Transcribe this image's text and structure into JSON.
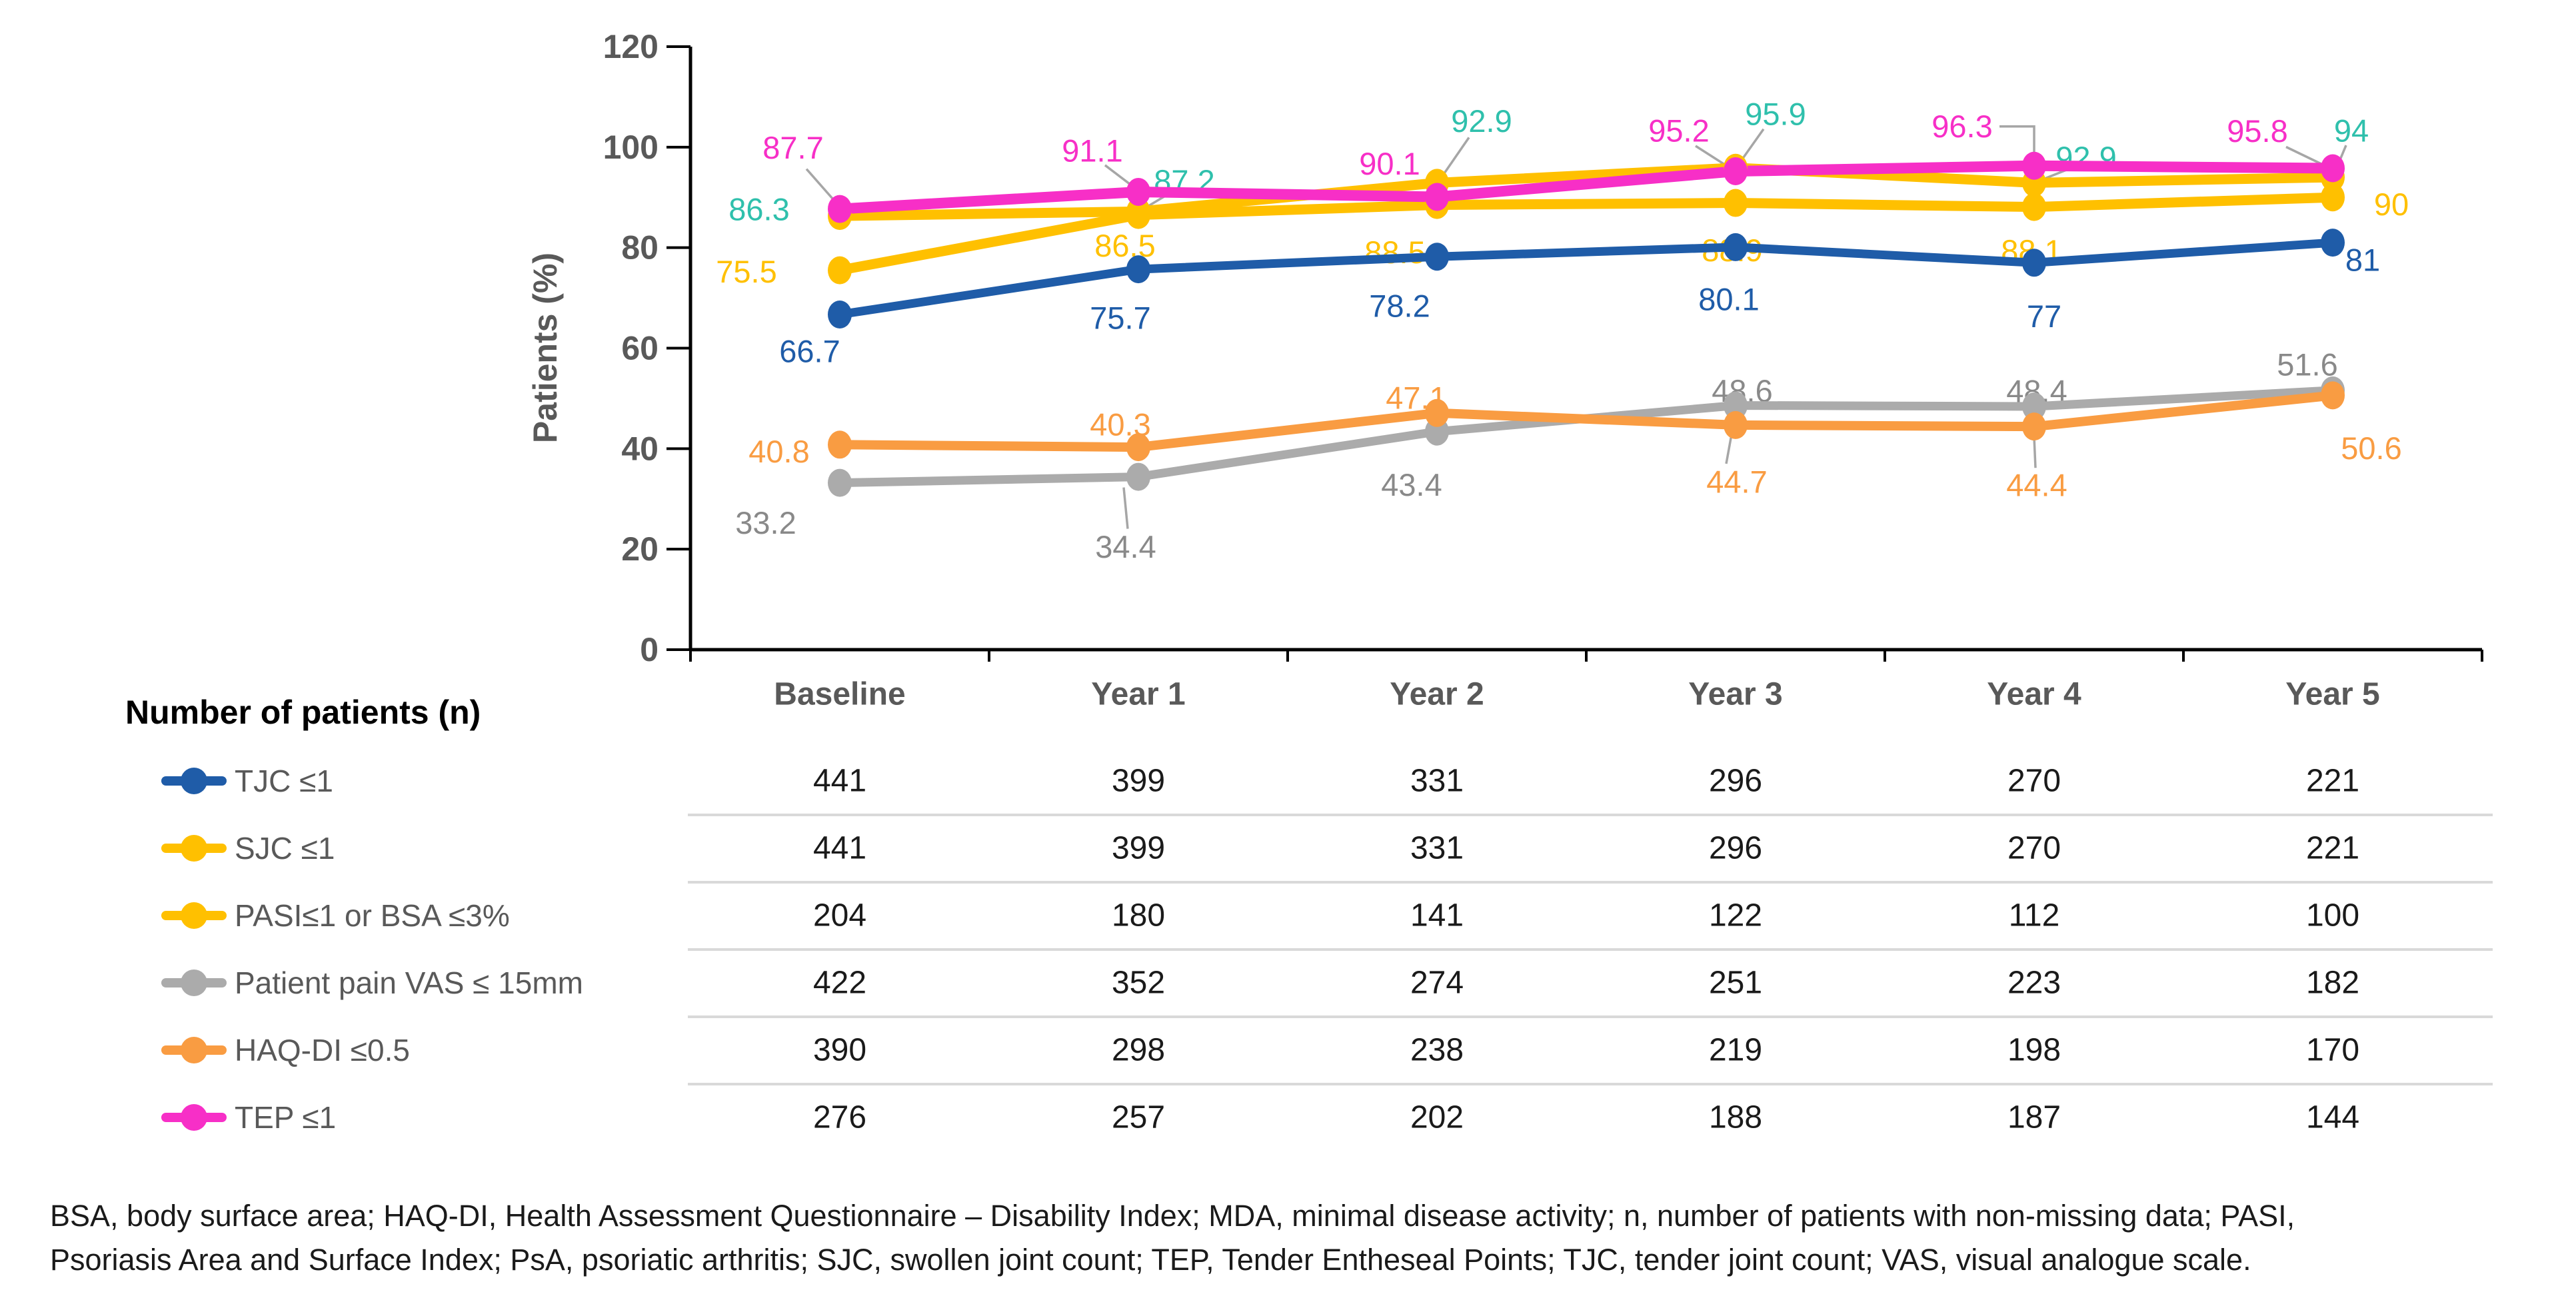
{
  "chart_data": {
    "type": "line",
    "title": "",
    "ylabel": "Patients (%)",
    "xlabel": "",
    "ylim": [
      0,
      120
    ],
    "yticks": [
      0,
      20,
      40,
      60,
      80,
      100,
      120
    ],
    "grid": false,
    "legend_position": "left-of-table",
    "categories": [
      "Baseline",
      "Year 1",
      "Year 2",
      "Year 3",
      "Year 4",
      "Year 5"
    ],
    "series": [
      {
        "name": "TJC ≤1",
        "color": "#1F5CA8",
        "label_color": "#1F5CA8",
        "line_width": 13,
        "values": [
          66.7,
          75.7,
          78.2,
          80.1,
          77,
          81
        ],
        "point_labels": [
          "66.7",
          "75.7",
          "78.2",
          "80.1",
          "77",
          "81"
        ]
      },
      {
        "name": "SJC ≤1",
        "color": "#FFC000",
        "label_color": "#2FC0AC",
        "line_width": 15,
        "values": [
          86.3,
          87.2,
          92.9,
          95.9,
          92.9,
          94
        ],
        "point_labels": [
          "86.3",
          "87.2",
          "92.9",
          "95.9",
          "92.9",
          "94"
        ]
      },
      {
        "name": "PASI≤1 or BSA ≤3%",
        "color": "#FFC000",
        "label_color": "#FFC000",
        "line_width": 15,
        "values": [
          75.5,
          86.5,
          88.5,
          88.9,
          88.1,
          90
        ],
        "point_labels": [
          "75.5",
          "86.5",
          "88.5",
          "88.9",
          "88.1",
          "90"
        ]
      },
      {
        "name": "Patient pain VAS ≤ 15mm",
        "color": "#ABABAB",
        "label_color": "#898989",
        "line_width": 13,
        "values": [
          33.2,
          34.4,
          43.4,
          48.6,
          48.4,
          51.6
        ],
        "point_labels": [
          "33.2",
          "34.4",
          "43.4",
          "48.6",
          "48.4",
          "51.6"
        ]
      },
      {
        "name": "HAQ-DI ≤0.5",
        "color": "#F99C42",
        "label_color": "#F99C42",
        "line_width": 14,
        "values": [
          40.8,
          40.3,
          47.1,
          44.7,
          44.4,
          50.6
        ],
        "point_labels": [
          "40.8",
          "40.3",
          "47.1",
          "44.7",
          "44.4",
          "50.6"
        ]
      },
      {
        "name": "TEP ≤1",
        "color": "#F72FC7",
        "label_color": "#F72FC7",
        "line_width": 16,
        "values": [
          87.7,
          91.1,
          90.1,
          95.2,
          96.3,
          95.8
        ],
        "point_labels": [
          "87.7",
          "91.1",
          "90.1",
          "95.2",
          "96.3",
          "95.8"
        ]
      }
    ],
    "table": {
      "title": "Number of patients (n)",
      "columns": [
        "Baseline",
        "Year 1",
        "Year 2",
        "Year 3",
        "Year 4",
        "Year 5"
      ],
      "rows": [
        {
          "label": "TJC ≤1",
          "values": [
            441,
            399,
            331,
            296,
            270,
            221
          ]
        },
        {
          "label": "SJC ≤1",
          "values": [
            441,
            399,
            331,
            296,
            270,
            221
          ]
        },
        {
          "label": "PASI≤1 or BSA ≤3%",
          "values": [
            204,
            180,
            141,
            122,
            112,
            100
          ]
        },
        {
          "label": "Patient pain VAS ≤ 15mm",
          "values": [
            422,
            352,
            274,
            251,
            223,
            182
          ]
        },
        {
          "label": "HAQ-DI ≤0.5",
          "values": [
            390,
            298,
            238,
            219,
            198,
            170
          ]
        },
        {
          "label": "TEP ≤1",
          "values": [
            276,
            257,
            202,
            188,
            187,
            144
          ]
        }
      ]
    }
  },
  "footnote": {
    "line1": "BSA, body surface area; HAQ-DI, Health Assessment Questionnaire – Disability Index; MDA, minimal disease activity; n, number of patients with non-missing data; PASI,",
    "line2": "Psoriasis Area and Surface Index; PsA, psoriatic arthritis; SJC, swollen joint count; TEP, Tender Entheseal Points; TJC, tender joint count; VAS, visual analogue scale."
  }
}
